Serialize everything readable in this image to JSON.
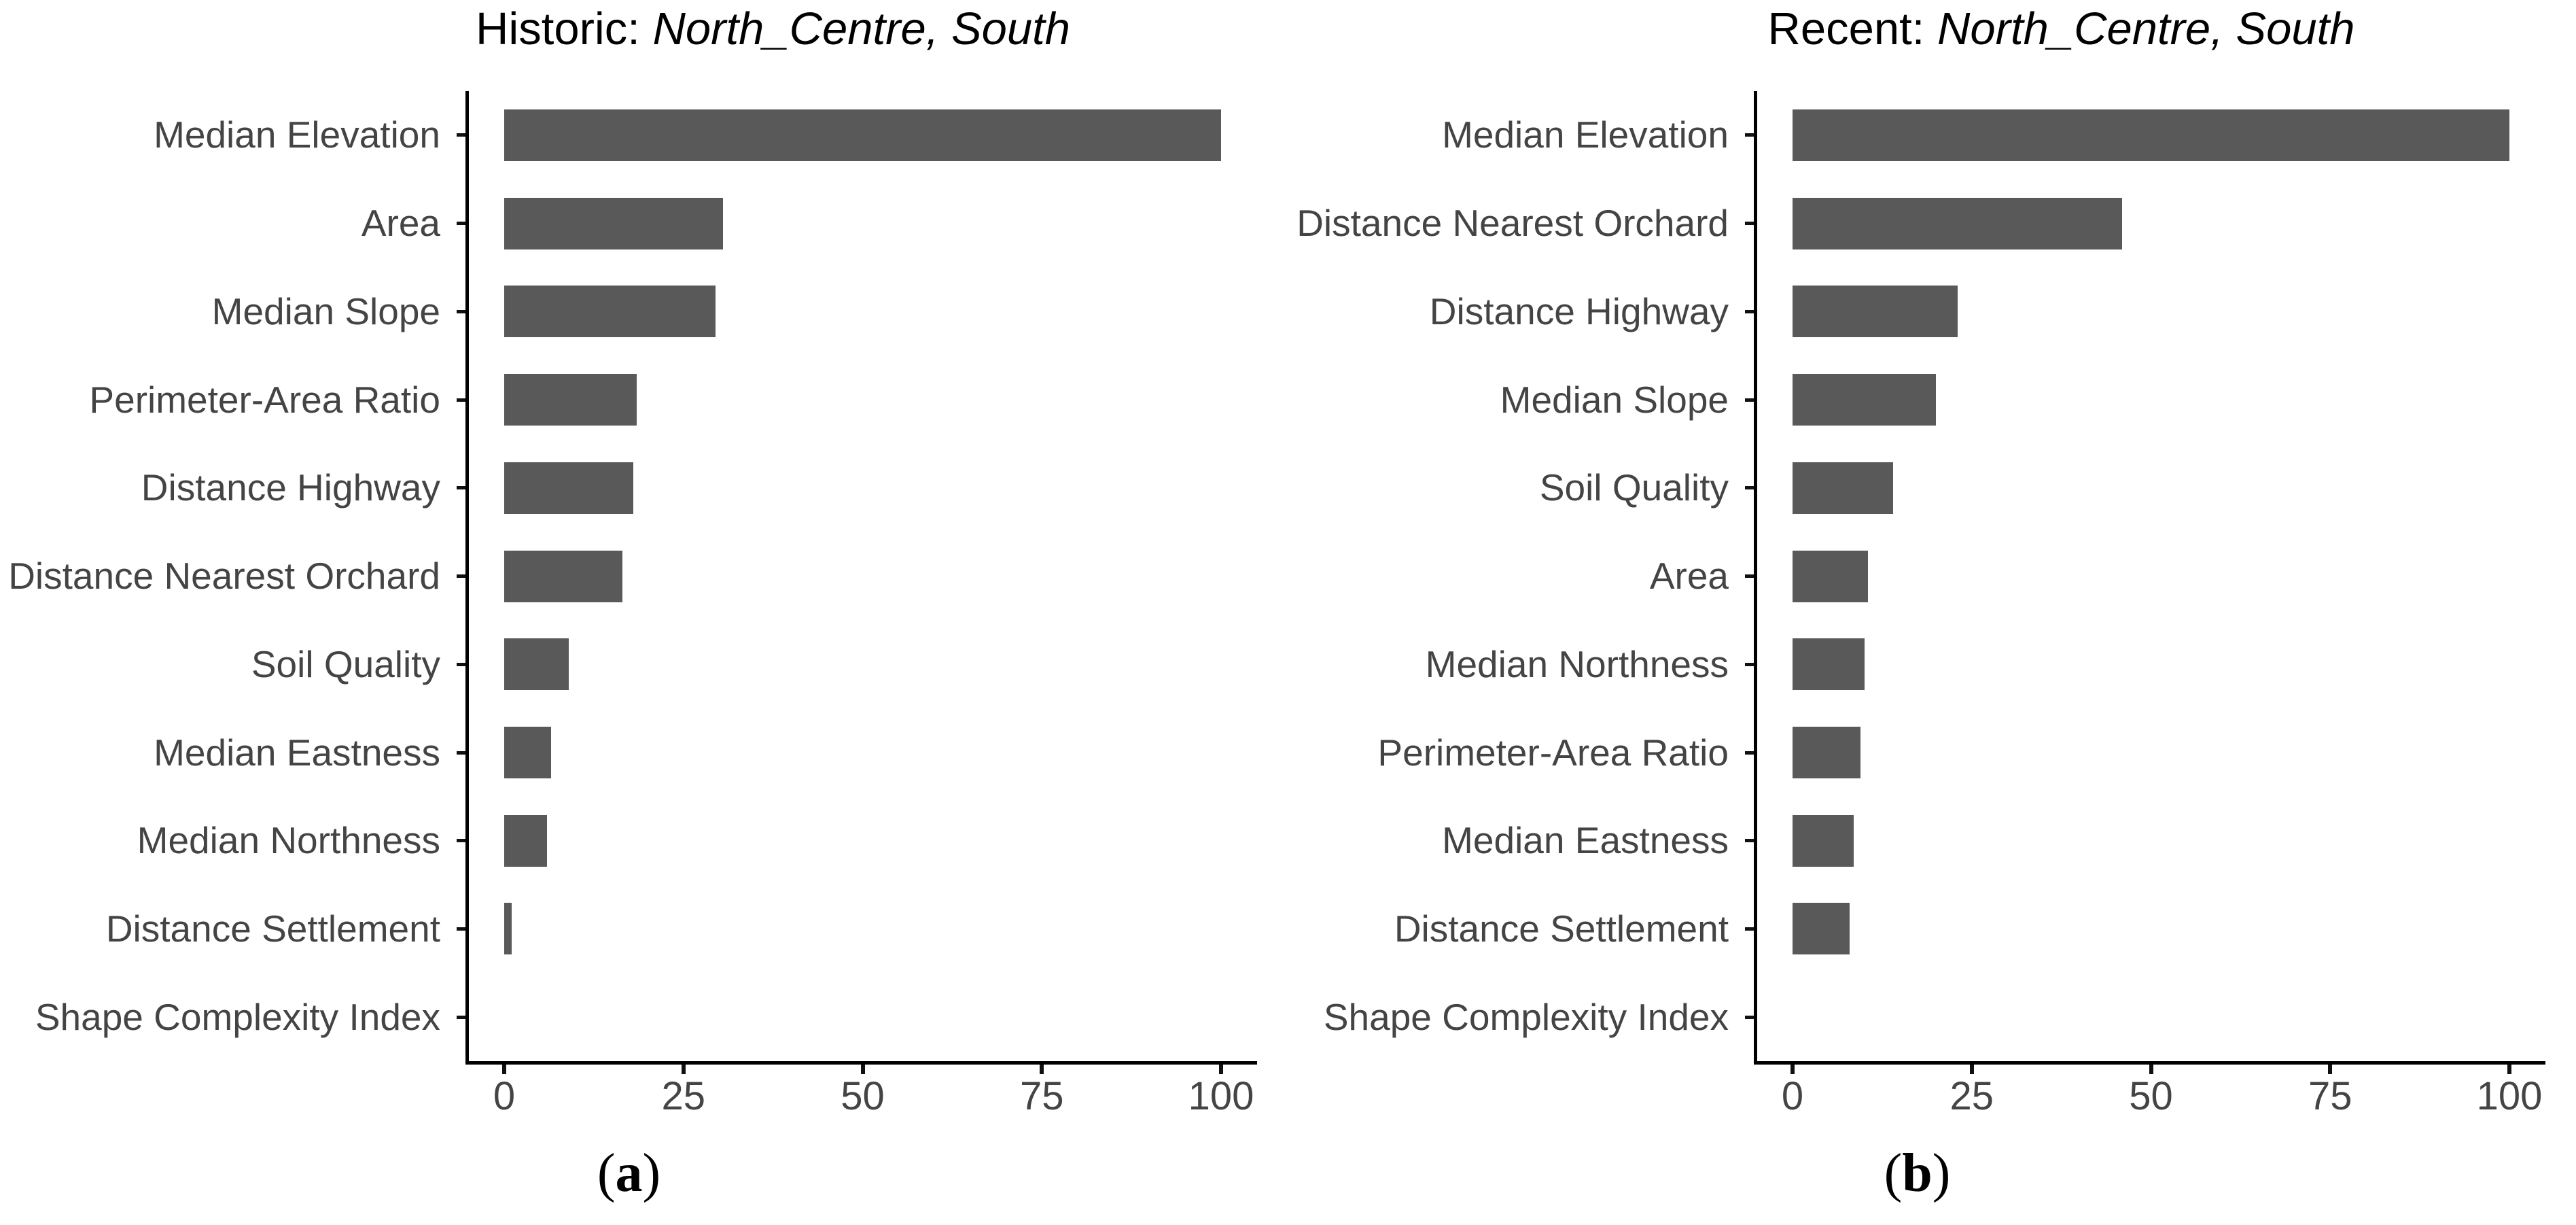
{
  "figure": {
    "background": "#ffffff",
    "bar_color": "#595959",
    "axis_color": "#000000",
    "tick_color": "#111111",
    "label_color": "#444444",
    "title_color": "#000000"
  },
  "chart_data": [
    {
      "type": "bar",
      "orientation": "horizontal",
      "title_prefix": "Historic: ",
      "title_italic": "North_Centre, South",
      "caption_open": "(",
      "caption_letter": "a",
      "caption_close": ")",
      "xlabel": "",
      "ylabel": "",
      "xlim": [
        0,
        105
      ],
      "x_ticks": [
        0,
        25,
        50,
        75,
        100
      ],
      "grid": false,
      "legend": false,
      "categories": [
        "Median Elevation",
        "Area",
        "Median Slope",
        "Perimeter-Area Ratio",
        "Distance Highway",
        "Distance Nearest Orchard",
        "Soil Quality",
        "Median Eastness",
        "Median Northness",
        "Distance Settlement",
        "Shape Complexity Index"
      ],
      "values": [
        100,
        30.5,
        29.5,
        18.5,
        18,
        16.5,
        9,
        6.5,
        6,
        1,
        0
      ]
    },
    {
      "type": "bar",
      "orientation": "horizontal",
      "title_prefix": "Recent: ",
      "title_italic": "North_Centre, South",
      "caption_open": "(",
      "caption_letter": "b",
      "caption_close": ")",
      "xlabel": "",
      "ylabel": "",
      "xlim": [
        0,
        105
      ],
      "x_ticks": [
        0,
        25,
        50,
        75,
        100
      ],
      "grid": false,
      "legend": false,
      "categories": [
        "Median Elevation",
        "Distance Nearest Orchard",
        "Distance Highway",
        "Median Slope",
        "Soil Quality",
        "Area",
        "Median Northness",
        "Perimeter-Area Ratio",
        "Median Eastness",
        "Distance Settlement",
        "Shape Complexity Index"
      ],
      "values": [
        100,
        46,
        23,
        20,
        14,
        10.5,
        10,
        9.5,
        8.5,
        8,
        0
      ]
    }
  ]
}
